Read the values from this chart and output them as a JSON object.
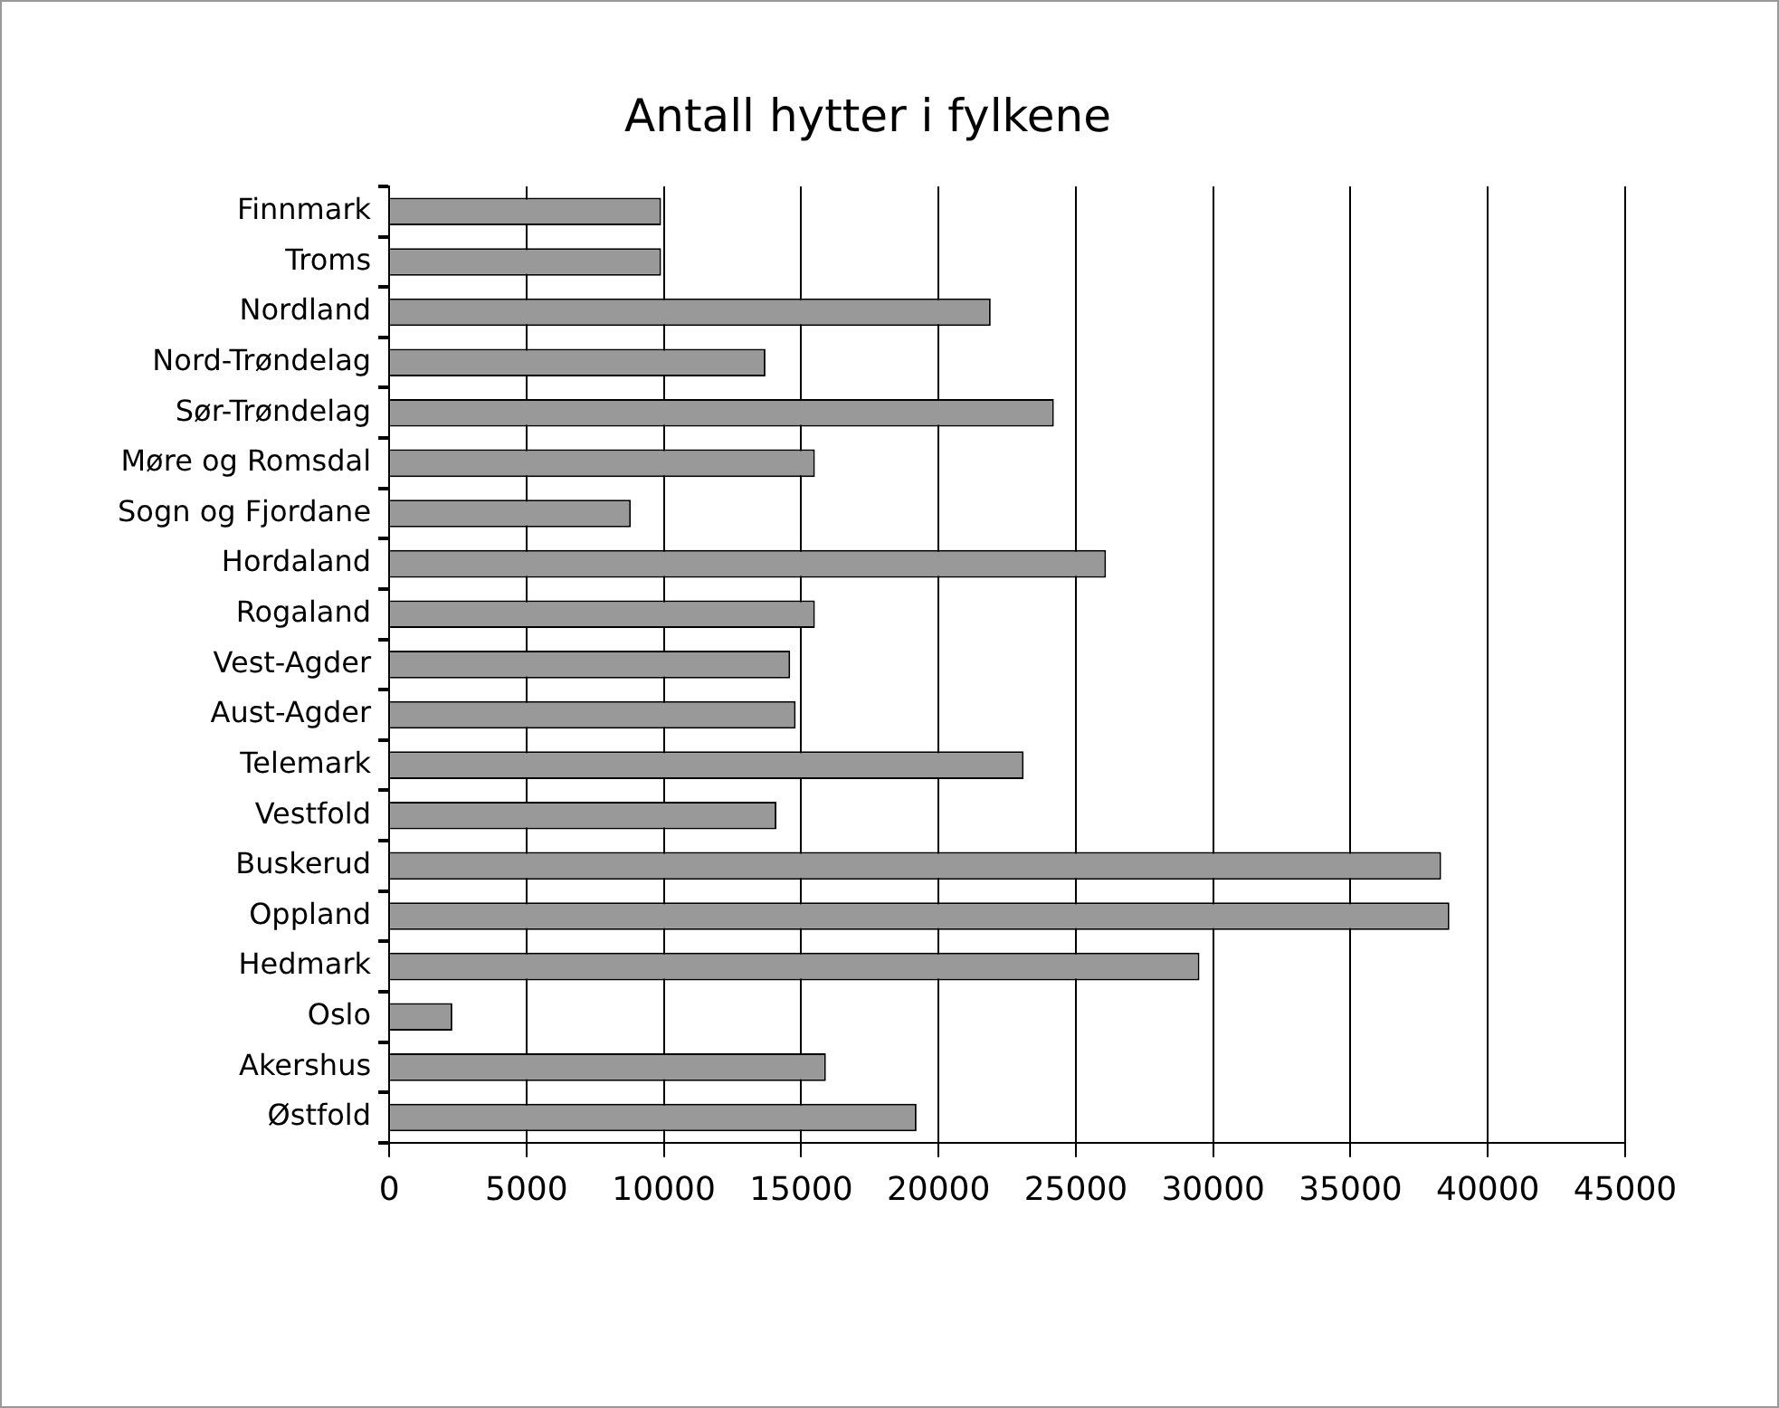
{
  "chart_data": {
    "type": "bar",
    "orientation": "horizontal",
    "title": "Antall hytter i fylkene",
    "categories": [
      "Finnmark",
      "Troms",
      "Nordland",
      "Nord-Trøndelag",
      "Sør-Trøndelag",
      "Møre og Romsdal",
      "Sogn og Fjordane",
      "Hordaland",
      "Rogaland",
      "Vest-Agder",
      "Aust-Agder",
      "Telemark",
      "Vestfold",
      "Buskerud",
      "Oppland",
      "Hedmark",
      "Oslo",
      "Akershus",
      "Østfold"
    ],
    "values": [
      9900,
      9900,
      21900,
      13700,
      24200,
      15500,
      8800,
      26100,
      15500,
      14600,
      14800,
      23100,
      14100,
      38300,
      38600,
      29500,
      2300,
      15900,
      19200
    ],
    "color": "#999999",
    "xlim": [
      0,
      45000
    ],
    "xticks": [
      0,
      5000,
      10000,
      15000,
      20000,
      25000,
      30000,
      35000,
      40000,
      45000
    ],
    "grid": "x",
    "legend": false
  }
}
